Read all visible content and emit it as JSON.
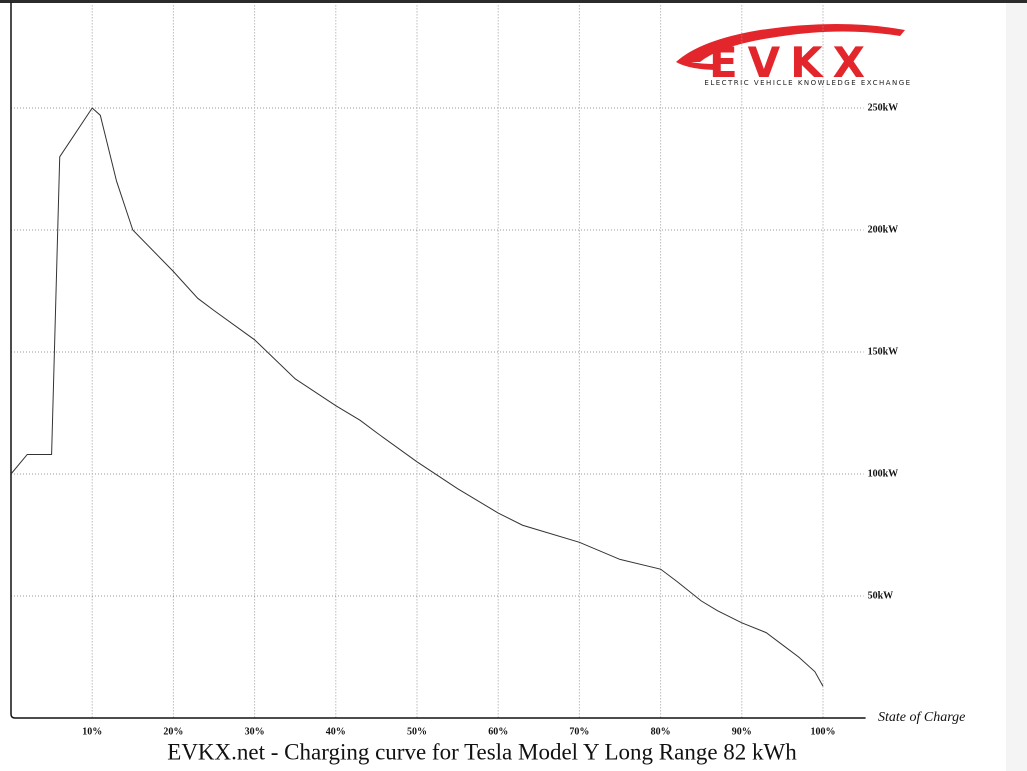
{
  "chart_data": {
    "type": "line",
    "title": "EVKX.net - Charging curve for Tesla Model Y Long Range 82 kWh",
    "x_label": "State of Charge",
    "logo": {
      "name": "EVKX",
      "tagline": "ELECTRIC VEHICLE KNOWLEDGE EXCHANGE"
    },
    "xlim": [
      0,
      105
    ],
    "ylim": [
      0,
      290
    ],
    "xticks": [
      {
        "value": 10,
        "label": "10%"
      },
      {
        "value": 20,
        "label": "20%"
      },
      {
        "value": 30,
        "label": "30%"
      },
      {
        "value": 40,
        "label": "40%"
      },
      {
        "value": 50,
        "label": "50%"
      },
      {
        "value": 60,
        "label": "60%"
      },
      {
        "value": 70,
        "label": "70%"
      },
      {
        "value": 80,
        "label": "80%"
      },
      {
        "value": 90,
        "label": "90%"
      },
      {
        "value": 100,
        "label": "100%"
      }
    ],
    "yticks": [
      {
        "value": 50,
        "label": "50kW"
      },
      {
        "value": 100,
        "label": "100kW"
      },
      {
        "value": 150,
        "label": "150kW"
      },
      {
        "value": 200,
        "label": "200kW"
      },
      {
        "value": 250,
        "label": "250kW"
      }
    ],
    "grid": true,
    "series": [
      {
        "name": "Tesla Model Y Long Range 82 kWh",
        "color": "#333333",
        "x": [
          0,
          2,
          5,
          6,
          10,
          11,
          13,
          15,
          20,
          23,
          25,
          30,
          35,
          40,
          43,
          45,
          50,
          55,
          60,
          63,
          65,
          70,
          75,
          80,
          82,
          85,
          87,
          90,
          93,
          95,
          97,
          99,
          100
        ],
        "values": [
          100,
          108,
          108,
          230,
          250,
          247,
          220,
          200,
          183,
          172,
          167,
          155,
          139,
          128,
          122,
          117,
          105,
          94,
          84,
          79,
          77,
          72,
          65,
          61,
          56,
          48,
          44,
          39,
          35,
          30,
          25,
          19,
          13
        ]
      }
    ]
  }
}
